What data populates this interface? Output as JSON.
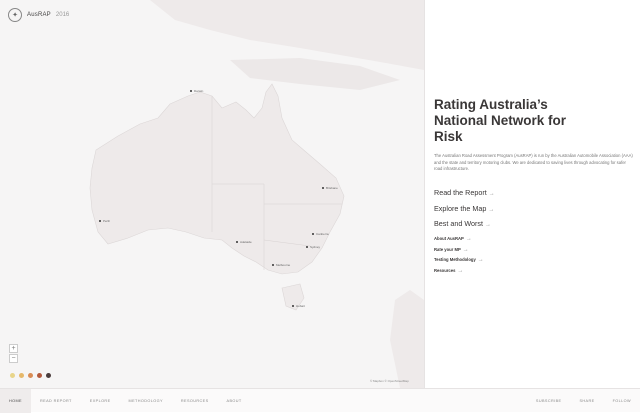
{
  "brand": {
    "name": "AusRAP",
    "year": "2016",
    "logo_icon": "badge-logo-icon"
  },
  "map": {
    "cities": [
      {
        "name": "Darwin"
      },
      {
        "name": "Perth"
      },
      {
        "name": "Adelaide"
      },
      {
        "name": "Melbourne"
      },
      {
        "name": "Hobart"
      },
      {
        "name": "Sydney"
      },
      {
        "name": "Canberra"
      },
      {
        "name": "Brisbane"
      }
    ],
    "zoom_in": "+",
    "zoom_out": "−",
    "legend_colors": [
      "#e8d58a",
      "#e6b86a",
      "#d98c55",
      "#b35a3d",
      "#4a3d3d"
    ],
    "attribution": "© Mapbox © OpenStreetMap"
  },
  "panel": {
    "title": "Rating Australia’s National Network for Risk",
    "intro": "The Australian Road Assessment Program (AusRAP) is run by the Australian Automobile Association (AAA) and the state and territory motoring clubs. We are dedicated to saving lives through advocating for safer road infrastructure.",
    "primary_links": [
      {
        "label": "Read the Report"
      },
      {
        "label": "Explore the Map"
      },
      {
        "label": "Best and Worst"
      }
    ],
    "secondary_links": [
      {
        "label": "About AusRAP"
      },
      {
        "label": "Rate your MP"
      },
      {
        "label": "Testing Methodology"
      },
      {
        "label": "Resources"
      }
    ],
    "arrow": "→"
  },
  "bottom_nav": {
    "left": [
      "HOME",
      "READ REPORT",
      "EXPLORE",
      "METHODOLOGY",
      "RESOURCES",
      "ABOUT"
    ],
    "right": [
      "SUBSCRIBE",
      "SHARE",
      "FOLLOW"
    ]
  }
}
